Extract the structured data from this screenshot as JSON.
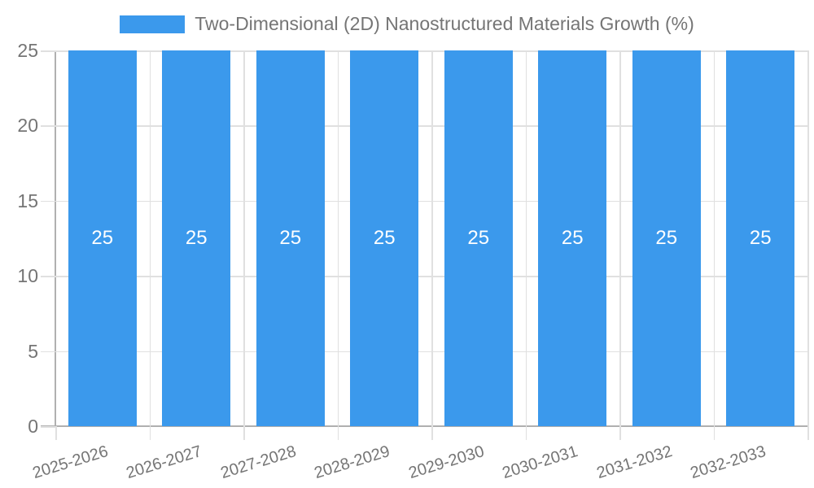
{
  "chart_data": {
    "type": "bar",
    "title": "Two-Dimensional (2D) Nanostructured Materials Growth (%)",
    "categories": [
      "2025-2026",
      "2026-2027",
      "2027-2028",
      "2028-2029",
      "2029-2030",
      "2030-2031",
      "2031-2032",
      "2032-2033"
    ],
    "values": [
      25,
      25,
      25,
      25,
      25,
      25,
      25,
      25
    ],
    "bar_value_labels": [
      "25",
      "25",
      "25",
      "25",
      "25",
      "25",
      "25",
      "25"
    ],
    "xlabel": "",
    "ylabel": "",
    "ylim": [
      0,
      25
    ],
    "yticks": [
      0,
      5,
      10,
      15,
      20,
      25
    ],
    "grid": true,
    "legend_position": "top",
    "legend_label": "Two-Dimensional (2D) Nanostructured Materials Growth (%)",
    "colors": {
      "bar": "#3b99ec",
      "grid": "#e0e0e0",
      "axis": "#b0b0b0",
      "text": "#757575",
      "bar_label": "#ffffff"
    }
  }
}
